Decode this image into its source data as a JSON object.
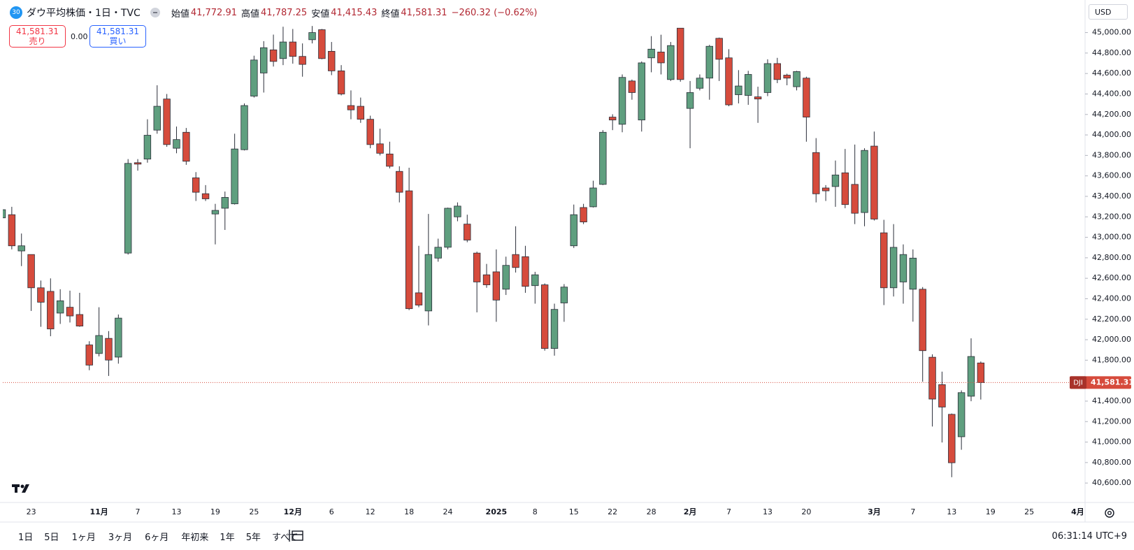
{
  "header": {
    "badge": "30",
    "title": "ダウ平均株価・1日・TVC",
    "open_label": "始値",
    "open": "41,772.91",
    "high_label": "高値",
    "high": "41,787.25",
    "low_label": "安値",
    "low": "41,415.43",
    "close_label": "終値",
    "close": "41,581.31",
    "change": "−260.32 (−0.62%)"
  },
  "trade": {
    "sell_price": "41,581.31",
    "sell": "売り",
    "spread": "0.00",
    "buy_price": "41,581.31",
    "buy": "買い"
  },
  "currency": "USD",
  "toolbar": {
    "ranges": [
      "1日",
      "5日",
      "1ヶ月",
      "3ヶ月",
      "6ヶ月",
      "年初来",
      "1年",
      "5年",
      "すべて"
    ],
    "clock": "06:31:14 UTC+9"
  },
  "chart_data": {
    "type": "candlestick",
    "up_color": "#5f9f7f",
    "down_color": "#d64b3c",
    "wick_color": "#2a2e39",
    "grid": false,
    "price_tag": {
      "symbol": "DJI",
      "label": "41,581.31"
    },
    "categories": [
      null,
      null,
      null,
      "23",
      null,
      null,
      null,
      null,
      null,
      null,
      "11月",
      null,
      null,
      null,
      "7",
      null,
      null,
      null,
      "13",
      null,
      null,
      null,
      "19",
      null,
      null,
      null,
      "25",
      null,
      null,
      null,
      "12月",
      null,
      null,
      null,
      "6",
      null,
      null,
      null,
      "12",
      null,
      null,
      null,
      "18",
      null,
      null,
      null,
      "24",
      null,
      null,
      null,
      null,
      "2025",
      null,
      null,
      null,
      "8",
      null,
      null,
      null,
      "15",
      null,
      null,
      null,
      "22",
      null,
      null,
      null,
      "28",
      null,
      null,
      null,
      "2月",
      null,
      null,
      null,
      "7",
      null,
      null,
      null,
      "13",
      null,
      null,
      null,
      "20",
      null,
      null,
      null,
      null,
      null,
      null,
      "3月",
      null,
      null,
      null,
      "7",
      null,
      null,
      null,
      "13",
      null,
      null,
      null,
      "19",
      null,
      null,
      null,
      "25",
      null,
      null,
      null,
      null,
      "4月"
    ],
    "open": [
      43190,
      43221,
      42867,
      42832,
      42507,
      42472,
      42260,
      42317,
      42246,
      41949,
      41865,
      42013,
      41830,
      42846,
      43729,
      43764,
      44047,
      44351,
      43870,
      44026,
      43581,
      43426,
      43228,
      43284,
      43327,
      43856,
      44379,
      44605,
      44831,
      44746,
      44908,
      44767,
      44930,
      45028,
      44817,
      44626,
      44287,
      44280,
      44153,
      43913,
      43814,
      43644,
      43454,
      42458,
      42281,
      42797,
      42903,
      43200,
      43129,
      42846,
      42634,
      42663,
      42493,
      42832,
      42811,
      42528,
      42536,
      41914,
      42359,
      42917,
      43291,
      43298,
      43517,
      44174,
      44104,
      44527,
      44146,
      44753,
      44810,
      44541,
      45043,
      44259,
      44456,
      44555,
      44944,
      44753,
      44393,
      44386,
      44372,
      44414,
      44697,
      44584,
      44471,
      44555,
      43828,
      43482,
      43496,
      43630,
      43517,
      43242,
      43891,
      43044,
      42507,
      42564,
      42493,
      42493,
      41829,
      41561,
      41271,
      41052,
      41448,
      41772.91,
      null,
      null,
      null,
      null,
      null,
      null,
      null,
      null,
      null,
      null
    ],
    "high": [
      43290,
      43298,
      43037,
      42832,
      42578,
      42599,
      42493,
      42479,
      42458,
      41985,
      42317,
      42084,
      42246,
      43764,
      43764,
      44153,
      44485,
      44400,
      44082,
      44068,
      43637,
      43510,
      43327,
      43447,
      44012,
      44308,
      44774,
      44916,
      44980,
      45057,
      45035,
      44894,
      45064,
      45035,
      44908,
      44682,
      44435,
      44365,
      44188,
      44061,
      43934,
      43694,
      43680,
      42917,
      43228,
      42987,
      43290,
      43341,
      43221,
      42860,
      42740,
      42882,
      42811,
      43108,
      42917,
      42663,
      42550,
      42352,
      42543,
      43320,
      43327,
      43553,
      44047,
      44202,
      44591,
      44541,
      44718,
      44965,
      44979,
      44908,
      45043,
      44527,
      44591,
      44880,
      44951,
      44838,
      44633,
      44626,
      44471,
      44739,
      44753,
      44598,
      44626,
      44569,
      43969,
      43510,
      43750,
      43863,
      43906,
      43870,
      44033,
      43171,
      43129,
      42931,
      42882,
      42514,
      41857,
      41688,
      41279,
      41505,
      42013,
      41787.25,
      null,
      null,
      null,
      null,
      null,
      null,
      null,
      null,
      null,
      null
    ],
    "low": [
      43170,
      42882,
      42719,
      42281,
      42126,
      42034,
      42154,
      42168,
      42126,
      41702,
      41837,
      41646,
      41766,
      42832,
      43651,
      43729,
      44012,
      43884,
      43821,
      43708,
      43355,
      43355,
      42931,
      43072,
      43320,
      43849,
      44365,
      44414,
      44668,
      44682,
      44696,
      44569,
      44894,
      44739,
      44584,
      44386,
      44153,
      44118,
      43870,
      43800,
      43673,
      43341,
      42289,
      42317,
      42140,
      42762,
      42882,
      43157,
      42952,
      42267,
      42507,
      42175,
      42437,
      42656,
      42458,
      42352,
      41893,
      41844,
      42175,
      42896,
      43129,
      43291,
      43510,
      44047,
      44026,
      44344,
      44033,
      44612,
      44591,
      44527,
      44520,
      43870,
      44435,
      44344,
      44527,
      44280,
      44308,
      44294,
      44118,
      44379,
      44506,
      44485,
      44435,
      43934,
      43341,
      43355,
      43298,
      43284,
      43129,
      43108,
      43164,
      42338,
      42422,
      42352,
      42176,
      41589,
      41152,
      40996,
      40657,
      40925,
      41399,
      41415.43,
      null,
      null,
      null,
      null,
      null,
      null,
      null,
      null,
      null,
      null
    ],
    "close": [
      43270,
      42917,
      42917,
      42507,
      42366,
      42105,
      42380,
      42232,
      42133,
      41752,
      42041,
      41801,
      42211,
      43722,
      43715,
      43997,
      44280,
      43906,
      43955,
      43743,
      43440,
      43376,
      43263,
      43390,
      43863,
      44287,
      44732,
      44852,
      44718,
      44908,
      44767,
      44689,
      45000,
      44746,
      44626,
      44400,
      44245,
      44153,
      43906,
      43821,
      43694,
      43440,
      42303,
      42338,
      42832,
      42903,
      43284,
      43305,
      42973,
      42564,
      42536,
      42387,
      42726,
      42705,
      42521,
      42634,
      41914,
      42296,
      42514,
      43221,
      43150,
      43482,
      44026,
      44146,
      44562,
      44414,
      44704,
      44838,
      44704,
      44873,
      44541,
      44414,
      44555,
      44866,
      44739,
      44294,
      44478,
      44591,
      44351,
      44697,
      44541,
      44555,
      44619,
      44174,
      43425,
      43454,
      43609,
      43320,
      43235,
      43849,
      43178,
      42507,
      42902,
      42832,
      42797,
      41893,
      41420,
      41342,
      40798,
      41483,
      41836,
      41581.31,
      null,
      null,
      null,
      null,
      null,
      null,
      null,
      null,
      null,
      null
    ],
    "ylim": [
      40410,
      45318
    ],
    "yticks": [
      {
        "value": 45000,
        "label": "45,000.00"
      },
      {
        "value": 44800,
        "label": "44,800.00"
      },
      {
        "value": 44600,
        "label": "44,600.00"
      },
      {
        "value": 44400,
        "label": "44,400.00"
      },
      {
        "value": 44200,
        "label": "44,200.00"
      },
      {
        "value": 44000,
        "label": "44,000.00"
      },
      {
        "value": 43800,
        "label": "43,800.00"
      },
      {
        "value": 43600,
        "label": "43,600.00"
      },
      {
        "value": 43400,
        "label": "43,400.00"
      },
      {
        "value": 43200,
        "label": "43,200.00"
      },
      {
        "value": 43000,
        "label": "43,000.00"
      },
      {
        "value": 42800,
        "label": "42,800.00"
      },
      {
        "value": 42600,
        "label": "42,600.00"
      },
      {
        "value": 42400,
        "label": "42,400.00"
      },
      {
        "value": 42200,
        "label": "42,200.00"
      },
      {
        "value": 42000,
        "label": "42,000.00"
      },
      {
        "value": 41800,
        "label": "41,800.00"
      },
      {
        "value": 41600,
        "label": "41,600.00"
      },
      {
        "value": 41400,
        "label": "41,400.00"
      },
      {
        "value": 41200,
        "label": "41,200.00"
      },
      {
        "value": 41000,
        "label": "41,000.00"
      },
      {
        "value": 40800,
        "label": "40,800.00"
      },
      {
        "value": 40600,
        "label": "40,600.00"
      }
    ]
  }
}
